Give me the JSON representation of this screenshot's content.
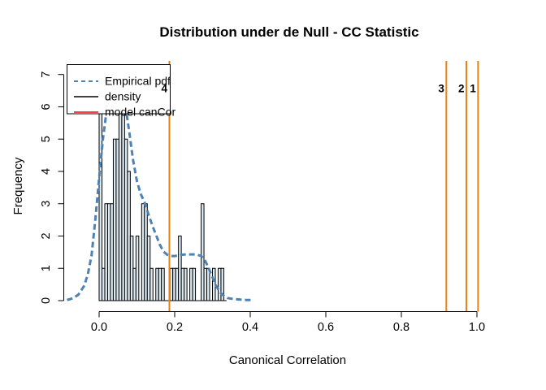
{
  "title": "Distribution under de Null - CC Statistic",
  "chart_data": {
    "type": "bar",
    "subtype": "histogram-with-density-overlay",
    "title": "Distribution under de Null - CC Statistic",
    "xlabel": "Canonical Correlation",
    "ylabel": "Frequency",
    "xlim": [
      -0.09,
      1.05
    ],
    "ylim": [
      0,
      7.4
    ],
    "grid": "off",
    "x_ticks": [
      0.0,
      0.2,
      0.4,
      0.6,
      0.8,
      1.0
    ],
    "x_tick_labels": [
      "0.0",
      "0.2",
      "0.4",
      "0.6",
      "0.8",
      "1.0"
    ],
    "y_ticks": [
      0,
      1,
      2,
      3,
      4,
      5,
      6,
      7
    ],
    "y_tick_labels": [
      "0",
      "1",
      "2",
      "3",
      "4",
      "5",
      "6",
      "7"
    ],
    "histogram": {
      "bin_start": 0.0,
      "bin_width": 0.0075,
      "frequencies": [
        7,
        1,
        3,
        3,
        3,
        5,
        5,
        7,
        6,
        5,
        4,
        2,
        1,
        2,
        0,
        3,
        3,
        2,
        1,
        0,
        1,
        1,
        1,
        0,
        0,
        1,
        1,
        1,
        2,
        1,
        1,
        0,
        1,
        1,
        0,
        0,
        3,
        1,
        1,
        0,
        1,
        0,
        1,
        1,
        0
      ],
      "fill_color": "#dce9f0",
      "stroke_color": "#000000"
    },
    "density_curve": {
      "name": "Empirical pdf",
      "color": "#4e82b4",
      "line_style": "dashed",
      "line_width": 3,
      "points": [
        [
          -0.085,
          0.02
        ],
        [
          -0.07,
          0.07
        ],
        [
          -0.055,
          0.18
        ],
        [
          -0.04,
          0.45
        ],
        [
          -0.03,
          0.8
        ],
        [
          -0.02,
          1.4
        ],
        [
          -0.01,
          2.5
        ],
        [
          0.0,
          3.8
        ],
        [
          0.01,
          5.0
        ],
        [
          0.02,
          5.9
        ],
        [
          0.03,
          6.4
        ],
        [
          0.045,
          6.65
        ],
        [
          0.06,
          6.5
        ],
        [
          0.07,
          6.0
        ],
        [
          0.08,
          5.2
        ],
        [
          0.09,
          4.35
        ],
        [
          0.1,
          3.7
        ],
        [
          0.11,
          3.3
        ],
        [
          0.12,
          3.05
        ],
        [
          0.13,
          2.7
        ],
        [
          0.14,
          2.35
        ],
        [
          0.15,
          2.05
        ],
        [
          0.16,
          1.75
        ],
        [
          0.17,
          1.52
        ],
        [
          0.18,
          1.42
        ],
        [
          0.19,
          1.38
        ],
        [
          0.2,
          1.38
        ],
        [
          0.21,
          1.4
        ],
        [
          0.22,
          1.42
        ],
        [
          0.23,
          1.43
        ],
        [
          0.24,
          1.43
        ],
        [
          0.25,
          1.43
        ],
        [
          0.26,
          1.42
        ],
        [
          0.27,
          1.38
        ],
        [
          0.28,
          1.25
        ],
        [
          0.29,
          1.0
        ],
        [
          0.3,
          0.72
        ],
        [
          0.31,
          0.45
        ],
        [
          0.32,
          0.26
        ],
        [
          0.33,
          0.15
        ],
        [
          0.34,
          0.08
        ],
        [
          0.355,
          0.05
        ],
        [
          0.375,
          0.03
        ],
        [
          0.39,
          0.02
        ],
        [
          0.405,
          0.02
        ]
      ]
    },
    "vlines": {
      "color": "#e8820e",
      "line_width": 2,
      "items": [
        {
          "x": 0.186,
          "label": "4"
        },
        {
          "x": 0.919,
          "label": "3"
        },
        {
          "x": 0.972,
          "label": "2"
        },
        {
          "x": 1.003,
          "label": "1"
        }
      ]
    },
    "legend": {
      "position": "top-left",
      "items": [
        {
          "label": "Empirical pdf",
          "color": "#4e82b4",
          "dashed": true
        },
        {
          "label": "density",
          "color": "#000000",
          "dashed": false
        },
        {
          "label": "model canCor",
          "color": "#ff0000",
          "dashed": false
        }
      ]
    }
  }
}
